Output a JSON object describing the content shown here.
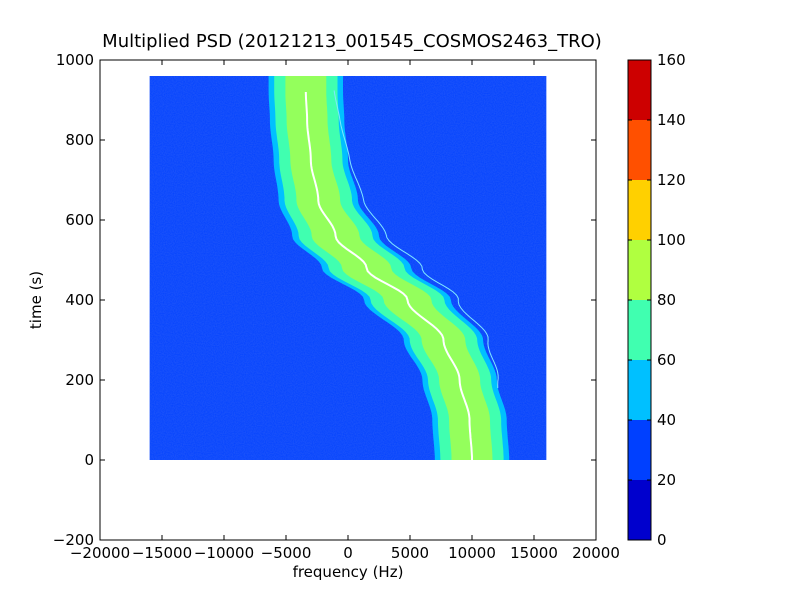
{
  "chart_data": {
    "type": "heatmap",
    "title": "Multiplied PSD (20121213_001545_COSMOS2463_TRO)",
    "xlabel": "frequency (Hz)",
    "ylabel": "time (s)",
    "xlim": [
      -20000,
      20000
    ],
    "ylim": [
      -200,
      1000
    ],
    "x_ticks": [
      "−20000",
      "−15000",
      "−10000",
      "−5000",
      "0",
      "5000",
      "10000",
      "15000",
      "20000"
    ],
    "y_ticks": [
      "−200",
      "0",
      "200",
      "400",
      "600",
      "800",
      "1000"
    ],
    "data_extent": {
      "x": [
        -16000,
        16000
      ],
      "y": [
        0,
        960
      ]
    },
    "background_level": 25,
    "signal": {
      "description_points_time_s": [
        0,
        100,
        200,
        300,
        400,
        480,
        560,
        650,
        750,
        850,
        920
      ],
      "center_frequency_hz": [
        10000,
        9800,
        9000,
        7700,
        4800,
        1500,
        -1000,
        -2400,
        -3000,
        -3300,
        -3400
      ],
      "half_width_hz": [
        3000,
        3000,
        3000,
        3200,
        3500,
        3600,
        3500,
        3200,
        3000,
        3000,
        3000
      ],
      "peak_level": 90
    },
    "colorbar": {
      "min": 0,
      "max": 160,
      "ticks": [
        "0",
        "20",
        "40",
        "60",
        "80",
        "100",
        "120",
        "140",
        "160"
      ],
      "colors": [
        "#0000cd",
        "#0040ff",
        "#00c0ff",
        "#40ffb0",
        "#b0ff40",
        "#ffd000",
        "#ff5000",
        "#cd0000"
      ]
    },
    "grid": false,
    "legend": "none"
  }
}
